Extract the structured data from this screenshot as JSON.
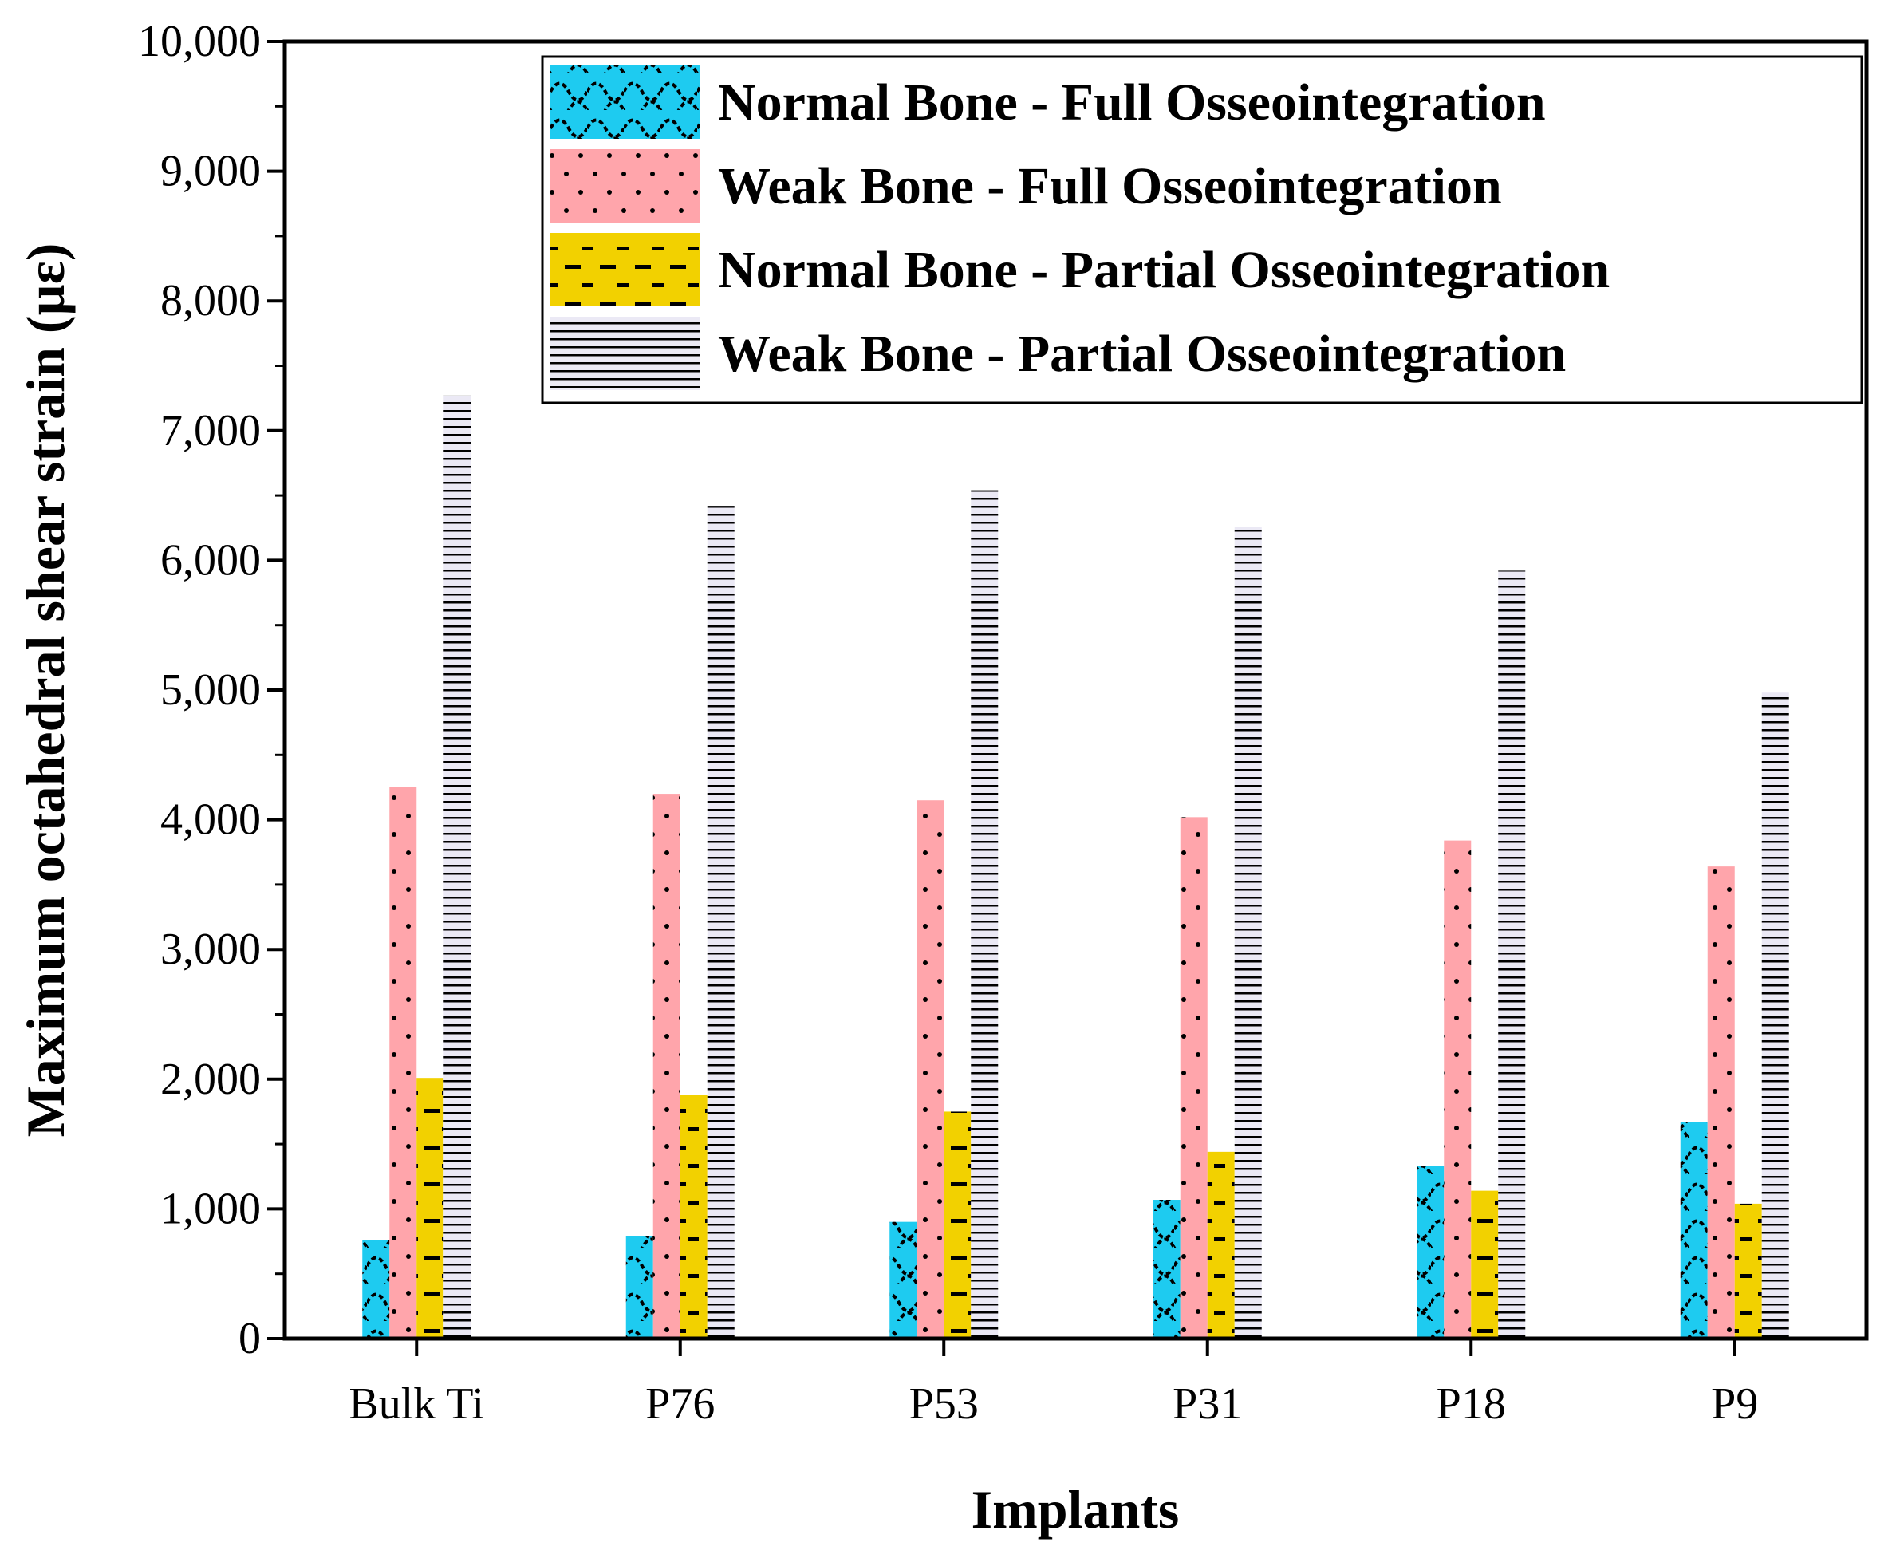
{
  "chart_data": {
    "type": "bar",
    "title": "",
    "xlabel": "Implants",
    "ylabel": "Maximum octahedral shear strain (µε)",
    "ylim": [
      0,
      10000
    ],
    "yticks": [
      "0",
      "1,000",
      "2,000",
      "3,000",
      "4,000",
      "5,000",
      "6,000",
      "7,000",
      "8,000",
      "9,000",
      "10,000"
    ],
    "ytick_values": [
      0,
      1000,
      2000,
      3000,
      4000,
      5000,
      6000,
      7000,
      8000,
      9000,
      10000
    ],
    "grid": false,
    "legend_position": "top-right",
    "categories": [
      "Bulk Ti",
      "P76",
      "P53",
      "P31",
      "P18",
      "P9"
    ],
    "series": [
      {
        "name": "Normal Bone - Full Osseointegration",
        "color": "#1ecbf0",
        "pattern": "scallop",
        "values": [
          760,
          790,
          900,
          1070,
          1330,
          1670
        ]
      },
      {
        "name": "Weak Bone - Full Osseointegration",
        "color": "#ffa5ab",
        "pattern": "dots",
        "values": [
          4250,
          4200,
          4150,
          4020,
          3840,
          3640
        ]
      },
      {
        "name": "Normal Bone - Partial Osseointegration",
        "color": "#f2d100",
        "pattern": "dashes",
        "values": [
          2010,
          1880,
          1750,
          1440,
          1140,
          1040
        ]
      },
      {
        "name": "Weak Bone - Partial Osseointegration",
        "color": "#ebe9f5",
        "pattern": "hlines",
        "values": [
          7270,
          6420,
          6540,
          6260,
          5920,
          4980
        ]
      }
    ]
  }
}
